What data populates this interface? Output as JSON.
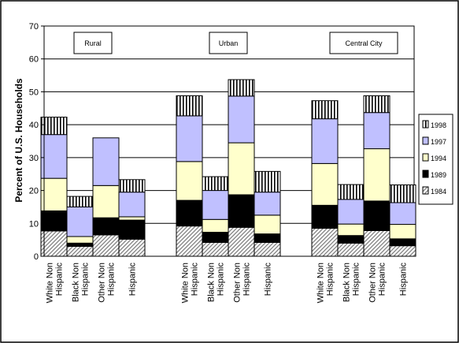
{
  "chart_data": {
    "type": "bar",
    "stacked": true,
    "title": "",
    "xlabel": "",
    "ylabel": "Percent of U.S. Households",
    "ylim": [
      0,
      70
    ],
    "yticks": [
      0,
      10,
      20,
      30,
      40,
      50,
      60,
      70
    ],
    "grid": true,
    "legend_position": "right",
    "groups": [
      "Rural",
      "Urban",
      "Central City"
    ],
    "categories": [
      "White Non Hispanic",
      "Black Non Hispanic",
      "Other Non Hispanic",
      "Hispanic"
    ],
    "series": [
      {
        "name": "1984",
        "pattern": "diagonal",
        "color": "#b0b0b0",
        "values": [
          [
            7.7,
            3.0,
            6.5,
            5.2
          ],
          [
            9.2,
            4.2,
            8.8,
            4.2
          ],
          [
            8.5,
            4.0,
            7.8,
            3.2
          ]
        ]
      },
      {
        "name": "1989",
        "pattern": "solid",
        "color": "#000000",
        "values": [
          [
            13.8,
            4.0,
            11.7,
            11.0
          ],
          [
            17.0,
            7.3,
            18.7,
            6.8
          ],
          [
            15.5,
            6.3,
            16.8,
            5.3
          ]
        ]
      },
      {
        "name": "1994",
        "pattern": "solid",
        "color": "#ffffcc",
        "values": [
          [
            23.7,
            6.0,
            21.5,
            12.0
          ],
          [
            28.8,
            11.2,
            34.5,
            12.5
          ],
          [
            28.2,
            9.8,
            32.7,
            9.7
          ]
        ]
      },
      {
        "name": "1997",
        "pattern": "solid",
        "color": "#c0c0ff",
        "values": [
          [
            37.0,
            15.0,
            36.0,
            19.5
          ],
          [
            42.7,
            20.0,
            48.7,
            19.5
          ],
          [
            41.8,
            17.3,
            43.7,
            16.3
          ]
        ]
      },
      {
        "name": "1998",
        "pattern": "vertical",
        "color": "#ffffff",
        "values": [
          [
            42.3,
            18.2,
            36.0,
            23.3
          ],
          [
            48.8,
            24.2,
            53.7,
            25.8
          ],
          [
            47.3,
            21.8,
            48.8,
            21.7
          ]
        ]
      }
    ]
  }
}
